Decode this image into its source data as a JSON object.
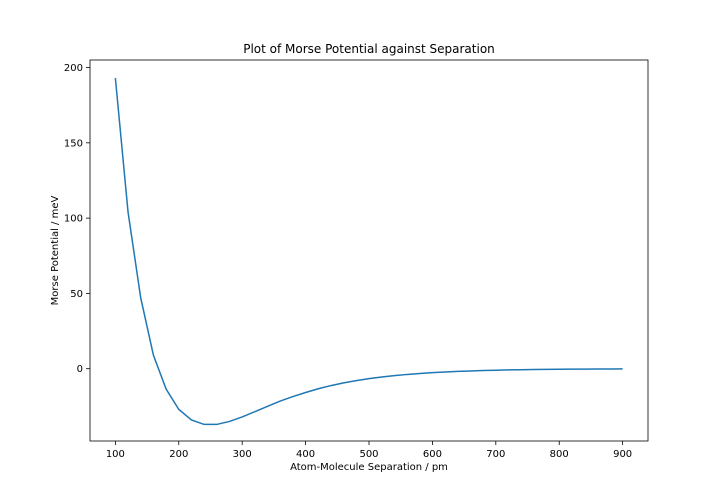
{
  "chart_data": {
    "type": "line",
    "title": "Plot of Morse Potential against Separation",
    "xlabel": "Atom-Molecule Separation / pm",
    "ylabel": "Morse Potential / meV",
    "xlim": [
      60,
      940
    ],
    "ylim": [
      -48,
      205
    ],
    "x_ticks": [
      100,
      200,
      300,
      400,
      500,
      600,
      700,
      800,
      900
    ],
    "y_ticks": [
      0,
      50,
      100,
      150,
      200
    ],
    "grid": false,
    "series": [
      {
        "color": "#1f77b4",
        "x": [
          100,
          120,
          140,
          160,
          180,
          200,
          220,
          240,
          260,
          280,
          300,
          320,
          340,
          360,
          380,
          400,
          420,
          440,
          460,
          480,
          500,
          520,
          540,
          560,
          580,
          600,
          620,
          640,
          660,
          680,
          700,
          720,
          740,
          760,
          780,
          800,
          820,
          840,
          860,
          880,
          900
        ],
        "y": [
          193,
          104,
          47,
          9,
          -13.5,
          -27,
          -34,
          -37,
          -37,
          -35,
          -32,
          -28.5,
          -25,
          -21.5,
          -18.5,
          -15.8,
          -13.3,
          -11.2,
          -9.4,
          -7.9,
          -6.6,
          -5.5,
          -4.6,
          -3.8,
          -3.2,
          -2.6,
          -2.2,
          -1.8,
          -1.5,
          -1.2,
          -1.0,
          -0.8,
          -0.7,
          -0.55,
          -0.45,
          -0.37,
          -0.3,
          -0.25,
          -0.2,
          -0.17,
          -0.14
        ]
      }
    ]
  }
}
